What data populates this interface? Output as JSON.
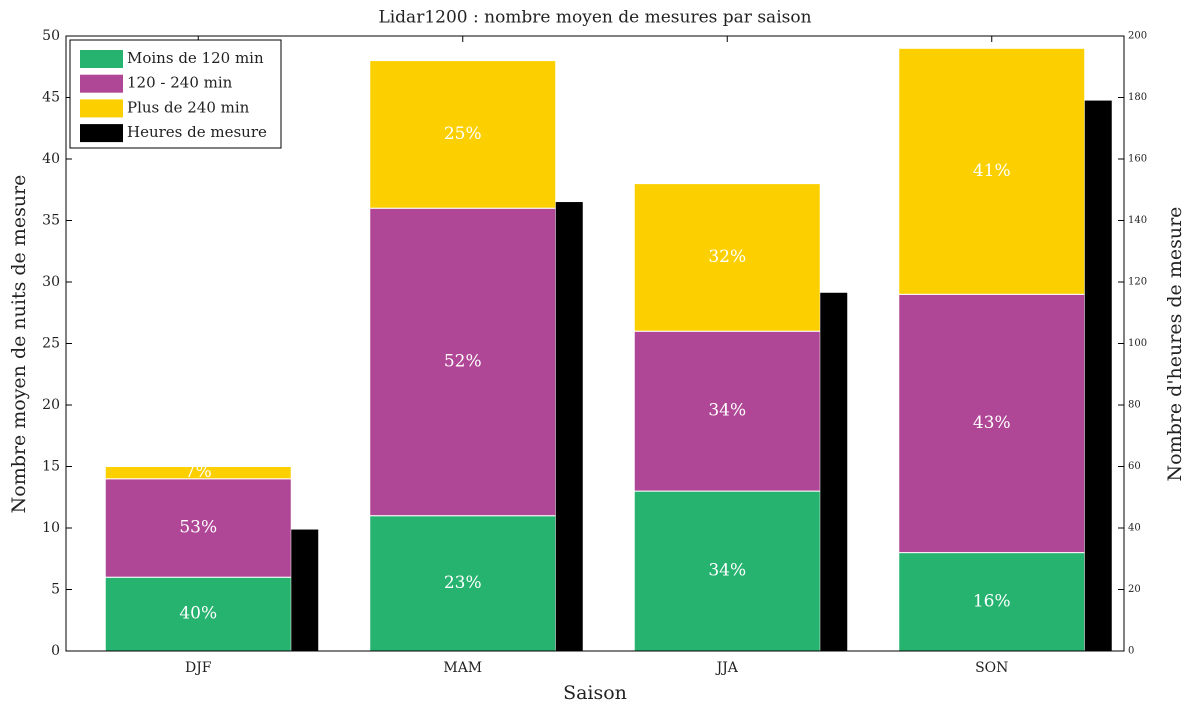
{
  "chart_data": {
    "type": "stacked-bar",
    "title": "Lidar1200 : nombre moyen de mesures par saison",
    "xlabel": "Saison",
    "ylabel": "Nombre moyen de nuits de mesure",
    "y2label": "Nombre d'heures de mesure",
    "categories": [
      "DJF",
      "MAM",
      "JJA",
      "SON"
    ],
    "series": [
      {
        "name": "Moins de 120 min",
        "color": "#25b36f",
        "values": [
          6,
          11,
          13,
          8
        ],
        "percent_labels": [
          "40%",
          "23%",
          "34%",
          "16%"
        ]
      },
      {
        "name": "120 - 240 min",
        "color": "#b04696",
        "values": [
          8,
          25,
          13,
          21
        ],
        "percent_labels": [
          "53%",
          "52%",
          "34%",
          "43%"
        ]
      },
      {
        "name": "Plus de 240 min",
        "color": "#fcd000",
        "values": [
          1,
          12,
          12,
          20
        ],
        "percent_labels": [
          "7%",
          "25%",
          "32%",
          "41%"
        ]
      },
      {
        "name": "Heures de mesure",
        "color": "#000000",
        "axis": "y2",
        "values": [
          39.5,
          146,
          116.5,
          179
        ]
      }
    ],
    "ylim": [
      0,
      50
    ],
    "yticks": [
      0,
      5,
      10,
      15,
      20,
      25,
      30,
      35,
      40,
      45,
      50
    ],
    "y2lim": [
      0,
      200
    ],
    "y2ticks": [
      0,
      20,
      40,
      60,
      80,
      100,
      120,
      140,
      160,
      180,
      200
    ],
    "legend": "upper left"
  }
}
